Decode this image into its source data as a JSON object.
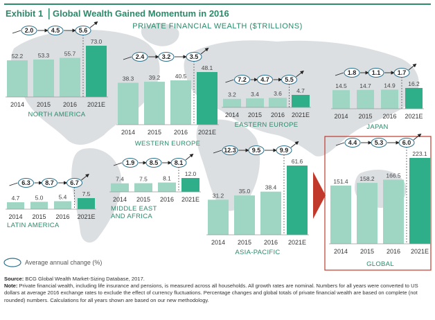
{
  "header": {
    "exhibit_label": "Exhibit 1",
    "title": "Global Wealth Gained Momentum in 2016",
    "subtitle": "PRIVATE FINANCIAL WEALTH ($TRILLIONS)"
  },
  "legend": {
    "label": "Average annual change (%)"
  },
  "colors": {
    "bar_light": "#9ed6c3",
    "bar_dark": "#2fae8a",
    "accent_green": "#2a8a6a",
    "highlight_red": "#c0392b",
    "map": "#dcdfe2"
  },
  "chart_data": [
    {
      "type": "bar",
      "title": "NORTH AMERICA",
      "categories": [
        "2014",
        "2015",
        "2016",
        "2021E"
      ],
      "values": [
        52.2,
        53.3,
        55.7,
        73.0
      ],
      "labels": [
        "52.2",
        "53.3",
        "55.7",
        "73.0"
      ],
      "changes": [
        "2.0",
        "4.5",
        "5.6"
      ]
    },
    {
      "type": "bar",
      "title": "WESTERN EUROPE",
      "categories": [
        "2014",
        "2015",
        "2016",
        "2021E"
      ],
      "values": [
        38.3,
        39.2,
        40.5,
        48.1
      ],
      "labels": [
        "38.3",
        "39.2",
        "40.5",
        "48.1"
      ],
      "changes": [
        "2.4",
        "3.2",
        "3.5"
      ]
    },
    {
      "type": "bar",
      "title": "EASTERN EUROPE",
      "categories": [
        "2014",
        "2015",
        "2016",
        "2021E"
      ],
      "values": [
        3.2,
        3.4,
        3.6,
        4.7
      ],
      "labels": [
        "3.2",
        "3.4",
        "3.6",
        "4.7"
      ],
      "changes": [
        "7.2",
        "4.7",
        "5.5"
      ]
    },
    {
      "type": "bar",
      "title": "JAPAN",
      "categories": [
        "2014",
        "2015",
        "2016",
        "2021E"
      ],
      "values": [
        14.5,
        14.7,
        14.9,
        16.2
      ],
      "labels": [
        "14.5",
        "14.7",
        "14.9",
        "16.2"
      ],
      "changes": [
        "1.8",
        "1.1",
        "1.7"
      ]
    },
    {
      "type": "bar",
      "title": "LATIN AMERICA",
      "categories": [
        "2014",
        "2015",
        "2016",
        "2021E"
      ],
      "values": [
        4.7,
        5.0,
        5.4,
        7.5
      ],
      "labels": [
        "4.7",
        "5.0",
        "5.4",
        "7.5"
      ],
      "changes": [
        "6.3",
        "8.7",
        "6.7"
      ]
    },
    {
      "type": "bar",
      "title": "MIDDLE EAST AND AFRICA",
      "title_lines": [
        "MIDDLE EAST",
        "AND AFRICA"
      ],
      "categories": [
        "2014",
        "2015",
        "2016",
        "2021E"
      ],
      "values": [
        7.4,
        7.5,
        8.1,
        12.0
      ],
      "labels": [
        "7.4",
        "7.5",
        "8.1",
        "12.0"
      ],
      "changes": [
        "1.9",
        "8.5",
        "8.1"
      ]
    },
    {
      "type": "bar",
      "title": "ASIA-PACIFIC",
      "categories": [
        "2014",
        "2015",
        "2016",
        "2021E"
      ],
      "values": [
        31.2,
        35.0,
        38.4,
        61.6
      ],
      "labels": [
        "31.2",
        "35.0",
        "38.4",
        "61.6"
      ],
      "changes": [
        "12.3",
        "9.5",
        "9.9"
      ]
    },
    {
      "type": "bar",
      "title": "GLOBAL",
      "categories": [
        "2014",
        "2015",
        "2016",
        "2021E"
      ],
      "values": [
        151.4,
        158.2,
        166.5,
        223.1
      ],
      "labels": [
        "151.4",
        "158.2",
        "166.5",
        "223.1"
      ],
      "changes": [
        "4.4",
        "5.3",
        "6.0"
      ]
    }
  ],
  "footer": {
    "source_label": "Source:",
    "source_text": "BCG Global Wealth Market-Sizing Database, 2017.",
    "note_label": "Note:",
    "note_text": "Private financial wealth, including life insurance and pensions, is measured across all households. All growth rates are nominal. Numbers for all years were converted to US dollars at average 2016 exchange rates to exclude the effect of currency fluctuations. Percentage changes and global totals of private financial wealth are based on complete (not rounded) numbers. Calculations for all years shown are based on our new methodology."
  }
}
